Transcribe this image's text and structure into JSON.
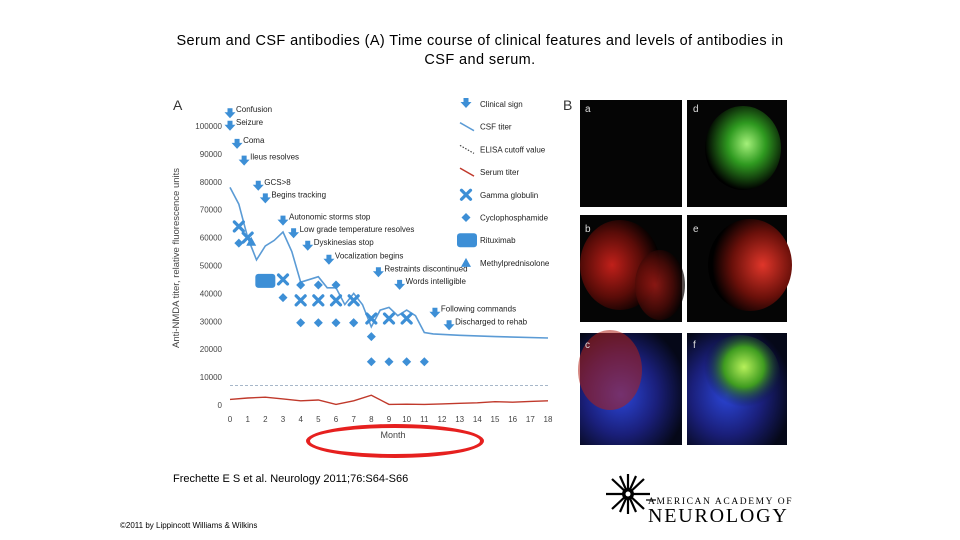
{
  "slide": {
    "title_line1": "Serum and CSF antibodies (A) Time course of clinical features and levels of antibodies in",
    "title_line2": "CSF and serum.",
    "citation": "Frechette E S et al. Neurology 2011;76:S64-S66",
    "copyright": "©2011 by Lippincott Williams & Wilkins",
    "logo_top": "AMERICAN ACADEMY OF",
    "logo_bottom": "NEUROLOGY"
  },
  "panel_labels": {
    "a": "A",
    "b": "B",
    "sub": [
      "a",
      "b",
      "c",
      "d",
      "e",
      "f"
    ]
  },
  "colors": {
    "csf": "#5b9bd5",
    "serum": "#c0392b",
    "marker": "#3d8fd6",
    "cutoff": "#8aa0b8",
    "annotation": "#e6201f"
  },
  "chart_data": {
    "type": "line",
    "xlabel": "Month",
    "ylabel": "Anti-NMDA titer, relative fluorescence units",
    "x_ticks": [
      0,
      1,
      2,
      3,
      4,
      5,
      6,
      7,
      8,
      9,
      10,
      11,
      12,
      13,
      14,
      15,
      16,
      17,
      18
    ],
    "y_ticks": [
      0,
      10000,
      20000,
      30000,
      40000,
      50000,
      60000,
      70000,
      80000,
      90000,
      100000
    ],
    "xlim": [
      0,
      18
    ],
    "ylim": [
      0,
      100000
    ],
    "series": [
      {
        "name": "CSF titer",
        "x": [
          0,
          0.5,
          1,
          1.5,
          2,
          2.5,
          3,
          3.5,
          4,
          5,
          5.5,
          6,
          6.5,
          7,
          7.5,
          8,
          8.5,
          9,
          9.5,
          10,
          10.5,
          11,
          11.5,
          13,
          15,
          18
        ],
        "y": [
          78000,
          72000,
          60000,
          52000,
          57000,
          59000,
          62000,
          55000,
          44000,
          46000,
          42000,
          42000,
          36000,
          40000,
          36000,
          28000,
          34000,
          35000,
          32000,
          34000,
          32000,
          26000,
          25500,
          25000,
          24500,
          24000
        ]
      },
      {
        "name": "Serum titer",
        "x": [
          0,
          1,
          2,
          3,
          4,
          5,
          6,
          7,
          8,
          9,
          10,
          11,
          12,
          13,
          14,
          15,
          16,
          17,
          18
        ],
        "y": [
          2000,
          2500,
          2800,
          2200,
          1500,
          1800,
          200,
          1500,
          3500,
          200,
          300,
          200,
          400,
          600,
          800,
          1200,
          1000,
          1300,
          1500
        ]
      },
      {
        "name": "ELISA cutoff value",
        "x": [
          0,
          18
        ],
        "y": [
          7000,
          7000
        ]
      }
    ],
    "legend": {
      "placement": "right",
      "entries": [
        {
          "label": "Clinical sign",
          "symbol": "arrow"
        },
        {
          "label": "CSF titer",
          "symbol": "blue-line"
        },
        {
          "label": "ELISA cutoff value",
          "symbol": "dotted-line"
        },
        {
          "label": "Serum titer",
          "symbol": "red-line"
        },
        {
          "label": "Gamma globulin",
          "symbol": "x"
        },
        {
          "label": "Cyclophosphamide",
          "symbol": "diamond"
        },
        {
          "label": "Rituximab",
          "symbol": "rect"
        },
        {
          "label": "Methylprednisolone",
          "symbol": "triangle"
        }
      ]
    },
    "events": [
      {
        "label": "Confusion",
        "x": 0,
        "y": 103500
      },
      {
        "label": "Seizure",
        "x": 0,
        "y": 99000
      },
      {
        "label": "Coma",
        "x": 0.4,
        "y": 92500
      },
      {
        "label": "Ileus resolves",
        "x": 0.8,
        "y": 86500
      },
      {
        "label": "GCS>8",
        "x": 1.6,
        "y": 77500
      },
      {
        "label": "Begins tracking",
        "x": 2,
        "y": 73000
      },
      {
        "label": "Autonomic storms stop",
        "x": 3,
        "y": 65000
      },
      {
        "label": "Low grade temperature resolves",
        "x": 3.6,
        "y": 60500
      },
      {
        "label": "Dyskinesias stop",
        "x": 4.4,
        "y": 56000
      },
      {
        "label": "Vocalization begins",
        "x": 5.6,
        "y": 51000
      },
      {
        "label": "Restraints discontinued",
        "x": 8.4,
        "y": 46500
      },
      {
        "label": "Words intelligible",
        "x": 9.6,
        "y": 42000
      },
      {
        "label": "Following commands",
        "x": 11.6,
        "y": 32000
      },
      {
        "label": "Discharged to rehab",
        "x": 12.4,
        "y": 27500
      }
    ],
    "gamma_globulin": {
      "x": [
        0.5,
        1,
        3,
        4,
        5,
        6,
        7,
        8,
        9,
        10
      ],
      "y": [
        64000,
        60000,
        45000,
        37500,
        37500,
        37500,
        37500,
        31000,
        31000,
        31000
      ]
    },
    "cyclophosphamide": {
      "x": [
        0.5,
        3,
        4,
        5,
        6,
        7,
        8,
        9,
        10,
        11,
        4,
        5,
        6,
        7,
        8
      ],
      "y": [
        58000,
        38500,
        29500,
        29500,
        29500,
        29500,
        24500,
        15500,
        15500,
        15500,
        43000,
        43000,
        43000,
        29500,
        15500
      ]
    },
    "rituximab": {
      "x": [
        2
      ],
      "y": [
        44500
      ]
    },
    "methylprednisolone": {
      "x": [
        1.2
      ],
      "y": [
        58500
      ]
    }
  }
}
